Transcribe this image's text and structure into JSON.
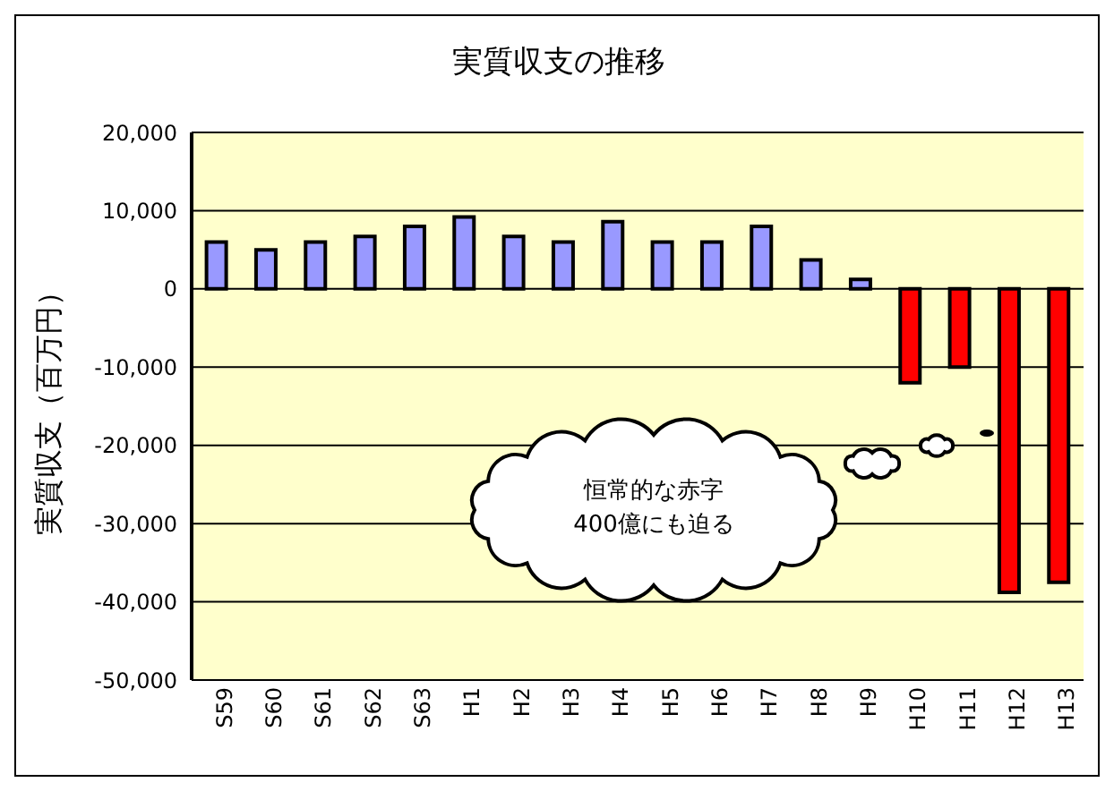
{
  "chart_data": {
    "type": "bar",
    "title": "実質収支の推移",
    "ylabel": "実質収支（百万円）",
    "categories": [
      "S59",
      "S60",
      "S61",
      "S62",
      "S63",
      "H1",
      "H2",
      "H3",
      "H4",
      "H5",
      "H6",
      "H7",
      "H8",
      "H9",
      "H10",
      "H11",
      "H12",
      "H13"
    ],
    "values": [
      6000,
      5000,
      6000,
      6700,
      8000,
      9200,
      6700,
      6000,
      8600,
      6000,
      6000,
      8000,
      3700,
      1200,
      -12000,
      -10000,
      -38800,
      -37500
    ],
    "colors": [
      "#9999ff",
      "#9999ff",
      "#9999ff",
      "#9999ff",
      "#9999ff",
      "#9999ff",
      "#9999ff",
      "#9999ff",
      "#9999ff",
      "#9999ff",
      "#9999ff",
      "#9999ff",
      "#9999ff",
      "#9999ff",
      "#ff0000",
      "#ff0000",
      "#ff0000",
      "#ff0000"
    ],
    "ylim": [
      -50000,
      20000
    ],
    "yticks": [
      {
        "value": -50000,
        "label": "-50,000"
      },
      {
        "value": -40000,
        "label": "-40,000"
      },
      {
        "value": -30000,
        "label": "-30,000"
      },
      {
        "value": -20000,
        "label": "-20,000"
      },
      {
        "value": -10000,
        "label": "-10,000"
      },
      0,
      {
        "value": 10000,
        "label": "10,000"
      },
      {
        "value": 20000,
        "label": "20,000"
      }
    ],
    "grid": "y",
    "annotations": [
      "恒常的な赤字\n400億にも迫る"
    ]
  }
}
